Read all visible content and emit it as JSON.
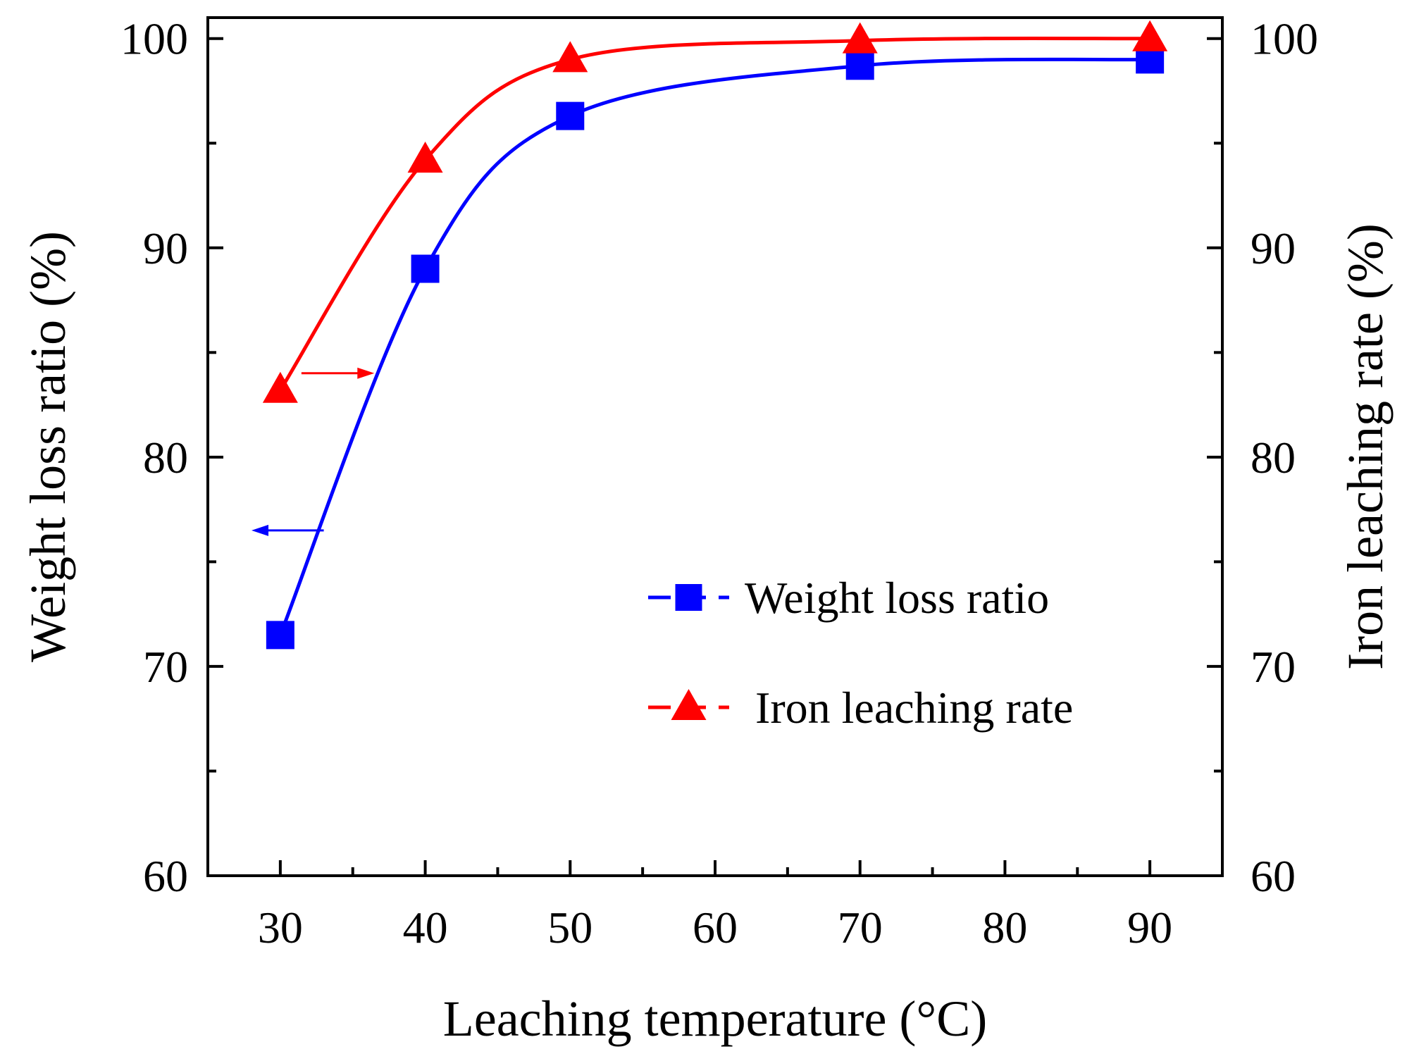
{
  "chart_data": {
    "type": "line",
    "xlabel": "Leaching temperature (°C)",
    "ylabel": "Weight loss ratio (%)",
    "y2label": "Iron leaching rate (%)",
    "xlim": [
      25,
      95
    ],
    "ylim": [
      60,
      101
    ],
    "y2lim": [
      60,
      101
    ],
    "x_ticks": [
      30,
      40,
      50,
      60,
      70,
      80,
      90
    ],
    "y_ticks": [
      60,
      70,
      80,
      90,
      100
    ],
    "y2_ticks": [
      60,
      70,
      80,
      90,
      100
    ],
    "grid": false,
    "legend_position": "bottom-right",
    "series": [
      {
        "name": "Weight loss ratio",
        "axis": "left",
        "marker": "square",
        "color": "#0000ff",
        "x": [
          30,
          40,
          50,
          70,
          90
        ],
        "values": [
          71.5,
          89.0,
          96.3,
          98.7,
          99.0
        ]
      },
      {
        "name": "Iron leaching rate",
        "axis": "right",
        "marker": "triangle",
        "color": "#ff0000",
        "x": [
          30,
          40,
          50,
          70,
          90
        ],
        "values": [
          83.2,
          94.2,
          99.0,
          99.9,
          100.0
        ]
      }
    ]
  }
}
